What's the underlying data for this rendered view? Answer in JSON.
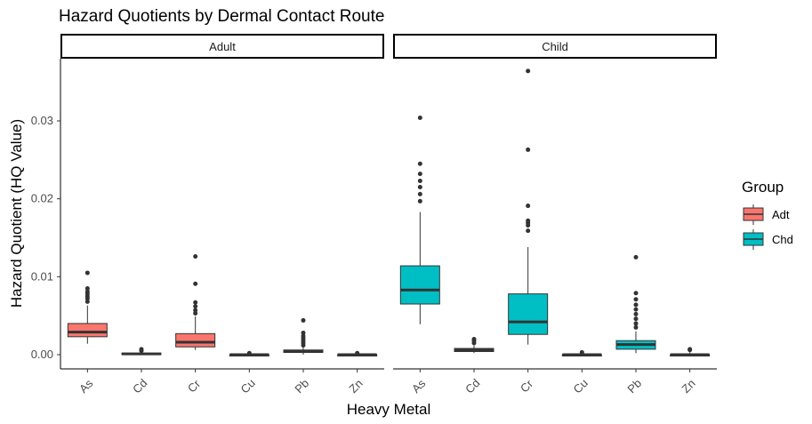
{
  "chart_data": {
    "type": "box",
    "title": "Hazard Quotients by Dermal Contact Route",
    "xlabel": "Heavy Metal",
    "ylabel": "Hazard Quotient (HQ Value)",
    "ylim": [
      -0.0017,
      0.0385
    ],
    "yticks": [
      0.0,
      0.01,
      0.02,
      0.03
    ],
    "ytick_labels": [
      "0.00",
      "0.01",
      "0.02",
      "0.03"
    ],
    "categories": [
      "As",
      "Cd",
      "Cr",
      "Cu",
      "Pb",
      "Zn"
    ],
    "legend": {
      "title": "Group",
      "position": "right",
      "entries": [
        {
          "label": "Adt",
          "color": "#F8766D"
        },
        {
          "label": "Chd",
          "color": "#00BFC4"
        }
      ]
    },
    "facets": [
      {
        "label": "Adult",
        "group": "Adt",
        "color": "#F8766D",
        "boxes": [
          {
            "category": "As",
            "min": 0.0014,
            "q1": 0.0023,
            "median": 0.0029,
            "q3": 0.004,
            "max": 0.0063,
            "outliers": [
              0.0068,
              0.0072,
              0.0075,
              0.0078,
              0.0081,
              0.0085,
              0.0105
            ]
          },
          {
            "category": "Cd",
            "min": 0.0,
            "q1": 0.0001,
            "median": 0.0001,
            "q3": 0.0002,
            "max": 0.0003,
            "outliers": [
              0.0005,
              0.0007
            ]
          },
          {
            "category": "Cr",
            "min": 0.0006,
            "q1": 0.001,
            "median": 0.0016,
            "q3": 0.0027,
            "max": 0.0049,
            "outliers": [
              0.0053,
              0.0057,
              0.0062,
              0.0067,
              0.0091,
              0.0126
            ]
          },
          {
            "category": "Cu",
            "min": -0.0001,
            "q1": -0.0001,
            "median": 0.0,
            "q3": 0.0,
            "max": 0.0001,
            "outliers": [
              0.0002
            ]
          },
          {
            "category": "Pb",
            "min": 0.0,
            "q1": 0.0003,
            "median": 0.0004,
            "q3": 0.0006,
            "max": 0.001,
            "outliers": [
              0.0012,
              0.0015,
              0.0018,
              0.0021,
              0.0024,
              0.0028,
              0.0044
            ]
          },
          {
            "category": "Zn",
            "min": -0.0001,
            "q1": -0.0001,
            "median": 0.0,
            "q3": 0.0,
            "max": 0.0001,
            "outliers": [
              0.0002
            ]
          }
        ]
      },
      {
        "label": "Child",
        "group": "Chd",
        "color": "#00BFC4",
        "boxes": [
          {
            "category": "As",
            "min": 0.0039,
            "q1": 0.0065,
            "median": 0.0083,
            "q3": 0.0114,
            "max": 0.0183,
            "outliers": [
              0.0197,
              0.0206,
              0.0215,
              0.0223,
              0.0232,
              0.0245,
              0.0304
            ]
          },
          {
            "category": "Cd",
            "min": 0.0002,
            "q1": 0.0004,
            "median": 0.0006,
            "q3": 0.0008,
            "max": 0.0012,
            "outliers": [
              0.0015,
              0.0018,
              0.002
            ]
          },
          {
            "category": "Cr",
            "min": 0.0013,
            "q1": 0.0026,
            "median": 0.0042,
            "q3": 0.0078,
            "max": 0.0138,
            "outliers": [
              0.0159,
              0.0166,
              0.0169,
              0.0172,
              0.0191,
              0.0263,
              0.0364
            ]
          },
          {
            "category": "Cu",
            "min": -0.0001,
            "q1": -0.0001,
            "median": 0.0,
            "q3": 0.0,
            "max": 0.0002,
            "outliers": [
              0.0003
            ]
          },
          {
            "category": "Pb",
            "min": 0.0002,
            "q1": 0.0007,
            "median": 0.0013,
            "q3": 0.0018,
            "max": 0.003,
            "outliers": [
              0.0035,
              0.004,
              0.0046,
              0.0052,
              0.0058,
              0.0064,
              0.0071,
              0.0079,
              0.0125
            ]
          },
          {
            "category": "Zn",
            "min": -0.0001,
            "q1": -0.0001,
            "median": 0.0,
            "q3": 0.0,
            "max": 0.0003,
            "outliers": [
              0.0006,
              0.0007
            ]
          }
        ]
      }
    ]
  }
}
